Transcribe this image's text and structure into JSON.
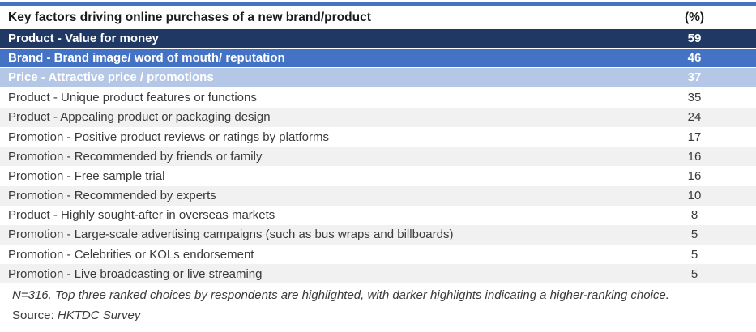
{
  "chart_data": {
    "type": "table",
    "title": "Key factors driving online purchases of a new brand/product",
    "columns": [
      "Key factors driving online purchases of a new brand/product",
      "(%)"
    ],
    "rows": [
      {
        "label": "Product - Value for money",
        "value": 59,
        "highlight": "dark",
        "rank": 1
      },
      {
        "label": "Brand - Brand image/ word of mouth/ reputation",
        "value": 46,
        "highlight": "medium",
        "rank": 2
      },
      {
        "label": "Price - Attractive price / promotions",
        "value": 37,
        "highlight": "light",
        "rank": 3
      },
      {
        "label": "Product - Unique product features or functions",
        "value": 35,
        "highlight": null
      },
      {
        "label": "Product - Appealing product or packaging design",
        "value": 24,
        "highlight": null
      },
      {
        "label": "Promotion - Positive product reviews or ratings by platforms",
        "value": 17,
        "highlight": null
      },
      {
        "label": "Promotion - Recommended by friends or family",
        "value": 16,
        "highlight": null
      },
      {
        "label": "Promotion - Free sample trial",
        "value": 16,
        "highlight": null
      },
      {
        "label": "Promotion - Recommended by experts",
        "value": 10,
        "highlight": null
      },
      {
        "label": "Product - Highly sought-after in overseas markets",
        "value": 8,
        "highlight": null
      },
      {
        "label": "Promotion - Large-scale advertising campaigns (such as bus wraps and billboards)",
        "value": 5,
        "highlight": null
      },
      {
        "label": "Promotion - Celebrities or KOLs endorsement",
        "value": 5,
        "highlight": null
      },
      {
        "label": "Promotion - Live broadcasting or live streaming",
        "value": 5,
        "highlight": null
      }
    ],
    "footnote": "N=316. Top three ranked choices by respondents are highlighted, with darker highlights indicating a higher-ranking choice.",
    "source_label": "Source:",
    "source_value": "HKTDC Survey",
    "legend_note": "darker highlight = higher rank"
  },
  "colors": {
    "top_bar": "#4472C4",
    "highlight_dark": "#1F3864",
    "highlight_medium": "#4472C4",
    "highlight_light": "#B4C7E7",
    "alt_row": "#F1F1F1",
    "body_text": "#3A3A3A",
    "header_text": "#1A1A1A"
  }
}
